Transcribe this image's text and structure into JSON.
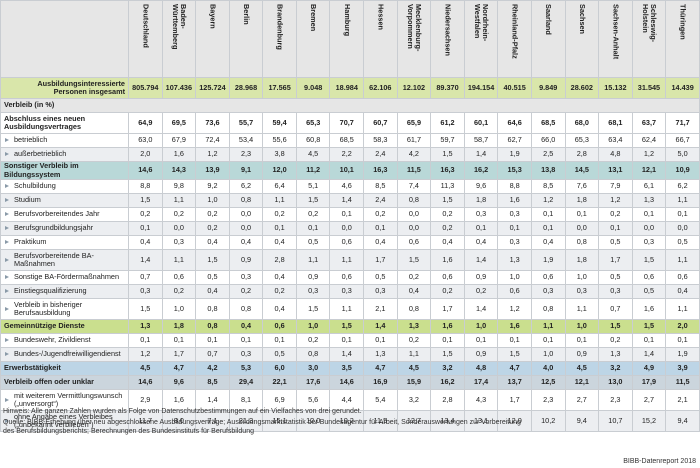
{
  "table": {
    "columns": [
      "Deutschland",
      "Baden-Württemberg",
      "Bayern",
      "Berlin",
      "Brandenburg",
      "Bremen",
      "Hamburg",
      "Hessen",
      "Mecklenburg-Vorpommern",
      "Niedersachsen",
      "Nordrhein-Westfalen",
      "Rheinland-Pfalz",
      "Saarland",
      "Sachsen",
      "Sachsen-Anhalt",
      "Schleswig-Holstein",
      "Thüringen"
    ],
    "rows": [
      {
        "label": "Ausbildungsinteressierte Personen insgesamt",
        "values": [
          "805.794",
          "107.436",
          "125.724",
          "28.968",
          "17.565",
          "9.048",
          "18.984",
          "62.106",
          "12.102",
          "89.370",
          "194.154",
          "40.515",
          "9.849",
          "28.602",
          "15.132",
          "31.545",
          "14.439"
        ]
      },
      {
        "label": "Verbleib (in %)"
      },
      {
        "label": "Abschluss eines neuen Ausbildungsvertrages",
        "values": [
          "64,9",
          "69,5",
          "73,6",
          "55,7",
          "59,4",
          "65,3",
          "70,7",
          "60,7",
          "65,9",
          "61,2",
          "60,1",
          "64,6",
          "68,5",
          "68,0",
          "68,1",
          "63,7",
          "71,7"
        ]
      },
      {
        "label": "betrieblich",
        "values": [
          "63,0",
          "67,9",
          "72,4",
          "53,4",
          "55,6",
          "60,8",
          "68,5",
          "58,3",
          "61,7",
          "59,7",
          "58,7",
          "62,7",
          "66,0",
          "65,3",
          "63,4",
          "62,4",
          "66,7"
        ]
      },
      {
        "label": "außerbetrieblich",
        "values": [
          "2,0",
          "1,6",
          "1,2",
          "2,3",
          "3,8",
          "4,5",
          "2,2",
          "2,4",
          "4,2",
          "1,5",
          "1,4",
          "1,9",
          "2,5",
          "2,8",
          "4,8",
          "1,2",
          "5,0"
        ]
      },
      {
        "label": "Sonstiger Verbleib im Bildungssystem",
        "values": [
          "14,6",
          "14,3",
          "13,9",
          "9,1",
          "12,0",
          "11,2",
          "10,1",
          "16,3",
          "11,5",
          "16,3",
          "16,2",
          "15,3",
          "13,8",
          "14,5",
          "13,1",
          "12,1",
          "10,9"
        ]
      },
      {
        "label": "Schulbildung",
        "values": [
          "8,8",
          "9,8",
          "9,2",
          "6,2",
          "6,4",
          "5,1",
          "4,6",
          "8,5",
          "7,4",
          "11,3",
          "9,6",
          "8,8",
          "8,5",
          "7,6",
          "7,9",
          "6,1",
          "6,2"
        ]
      },
      {
        "label": "Studium",
        "values": [
          "1,5",
          "1,1",
          "1,0",
          "0,8",
          "1,1",
          "1,5",
          "1,4",
          "2,4",
          "0,8",
          "1,5",
          "1,8",
          "1,6",
          "1,2",
          "1,8",
          "1,2",
          "1,3",
          "1,1"
        ]
      },
      {
        "label": "Berufsvorbereitendes Jahr",
        "values": [
          "0,2",
          "0,2",
          "0,2",
          "0,0",
          "0,2",
          "0,2",
          "0,1",
          "0,2",
          "0,0",
          "0,2",
          "0,3",
          "0,3",
          "0,1",
          "0,1",
          "0,2",
          "0,1",
          "0,1"
        ]
      },
      {
        "label": "Berufsgrundbildungsjahr",
        "values": [
          "0,1",
          "0,0",
          "0,2",
          "0,0",
          "0,1",
          "0,1",
          "0,0",
          "0,1",
          "0,0",
          "0,2",
          "0,1",
          "0,1",
          "0,1",
          "0,0",
          "0,1",
          "0,0",
          "0,0"
        ]
      },
      {
        "label": "Praktikum",
        "values": [
          "0,4",
          "0,3",
          "0,4",
          "0,4",
          "0,4",
          "0,5",
          "0,6",
          "0,4",
          "0,6",
          "0,4",
          "0,4",
          "0,3",
          "0,4",
          "0,8",
          "0,5",
          "0,3",
          "0,5"
        ]
      },
      {
        "label": "Berufsvorbereitende BA-Maßnahmen",
        "values": [
          "1,4",
          "1,1",
          "1,5",
          "0,9",
          "2,8",
          "1,1",
          "1,1",
          "1,7",
          "1,5",
          "1,6",
          "1,4",
          "1,3",
          "1,9",
          "1,8",
          "1,7",
          "1,5",
          "1,1"
        ]
      },
      {
        "label": "Sonstige BA-Fördermaßnahmen",
        "values": [
          "0,7",
          "0,6",
          "0,5",
          "0,3",
          "0,4",
          "0,9",
          "0,6",
          "0,5",
          "0,2",
          "0,6",
          "0,9",
          "1,0",
          "0,6",
          "1,0",
          "0,5",
          "0,6",
          "0,6"
        ]
      },
      {
        "label": "Einstiegsqualifizierung",
        "values": [
          "0,3",
          "0,2",
          "0,4",
          "0,2",
          "0,2",
          "0,3",
          "0,3",
          "0,3",
          "0,4",
          "0,2",
          "0,2",
          "0,6",
          "0,3",
          "0,3",
          "0,3",
          "0,5",
          "0,4"
        ]
      },
      {
        "label": "Verbleib in bisheriger Berufsausbildung",
        "values": [
          "1,5",
          "1,0",
          "0,8",
          "0,8",
          "0,4",
          "1,5",
          "1,1",
          "2,1",
          "0,8",
          "1,7",
          "1,4",
          "1,2",
          "0,8",
          "1,1",
          "0,7",
          "1,6",
          "1,1"
        ]
      },
      {
        "label": "Gemeinnützige Dienste",
        "values": [
          "1,3",
          "1,8",
          "0,8",
          "0,4",
          "0,6",
          "1,0",
          "1,5",
          "1,4",
          "1,3",
          "1,6",
          "1,0",
          "1,6",
          "1,1",
          "1,0",
          "1,5",
          "1,5",
          "2,0"
        ]
      },
      {
        "label": "Bundeswehr, Zivildienst",
        "values": [
          "0,1",
          "0,1",
          "0,1",
          "0,1",
          "0,1",
          "0,2",
          "0,1",
          "0,1",
          "0,2",
          "0,1",
          "0,1",
          "0,1",
          "0,1",
          "0,1",
          "0,2",
          "0,1",
          "0,1"
        ]
      },
      {
        "label": "Bundes-/Jugendfreiwilligendienst",
        "values": [
          "1,2",
          "1,7",
          "0,7",
          "0,3",
          "0,5",
          "0,8",
          "1,4",
          "1,3",
          "1,1",
          "1,5",
          "0,9",
          "1,5",
          "1,0",
          "0,9",
          "1,3",
          "1,4",
          "1,9"
        ]
      },
      {
        "label": "Erwerbstätigkeit",
        "values": [
          "4,5",
          "4,7",
          "4,2",
          "5,3",
          "6,0",
          "3,0",
          "3,5",
          "4,7",
          "4,5",
          "3,2",
          "4,8",
          "4,7",
          "4,0",
          "4,5",
          "3,2",
          "4,9",
          "3,9"
        ]
      },
      {
        "label": "Verbleib offen oder unklar",
        "values": [
          "14,6",
          "9,6",
          "8,5",
          "29,4",
          "22,1",
          "17,6",
          "14,6",
          "16,9",
          "15,9",
          "16,2",
          "17,4",
          "13,7",
          "12,5",
          "12,1",
          "13,0",
          "17,9",
          "11,5"
        ]
      },
      {
        "label": "mit weiterem Vermittlungswunsch („unversorgt“)",
        "values": [
          "2,9",
          "1,6",
          "1,4",
          "8,1",
          "6,9",
          "5,6",
          "4,4",
          "5,4",
          "3,2",
          "2,8",
          "4,3",
          "1,7",
          "2,3",
          "2,7",
          "2,3",
          "2,7",
          "2,1"
        ]
      },
      {
        "label": "ohne Angabe eines Verbleibes („unbekannt verblieben“)",
        "values": [
          "11,7",
          "8,0",
          "7,1",
          "21,3",
          "15,1",
          "12,0",
          "10,2",
          "11,5",
          "12,7",
          "13,4",
          "13,1",
          "12,0",
          "10,2",
          "9,4",
          "10,7",
          "15,2",
          "9,4"
        ]
      }
    ]
  },
  "footer": {
    "note": "Hinweis: Alle ganzen Zahlen wurden als Folge von Datenschutzbestimmungen auf ein Vielfaches von drei gerundet.",
    "source": "Quelle: BIBB-Erhebung über neu abgeschlossene Ausbildungsverträge; Ausbildungsmarktstatistik der Bundesagentur für Arbeit, Sonderauswertungen zur Vorbereitung des Berufsbildungsberichts; Berechnungen des Bundesinstituts für Berufsbildung",
    "credit": "BIBB-Datenreport 2018"
  }
}
